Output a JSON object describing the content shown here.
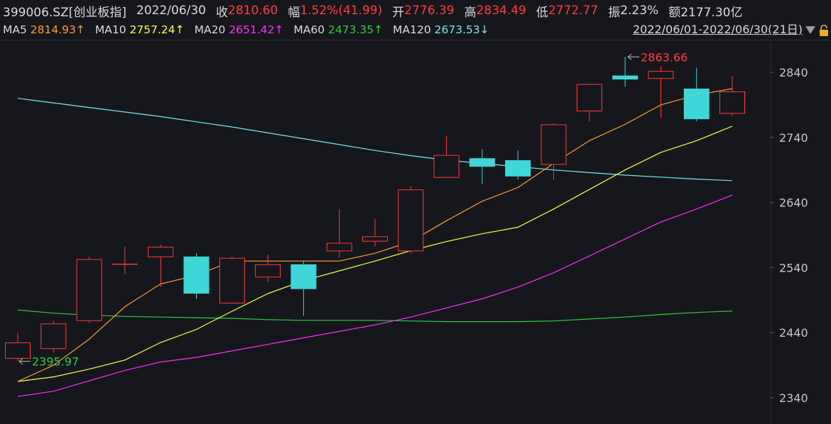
{
  "header": {
    "code": "399006.SZ[创业板指]",
    "date": "2022/06/30",
    "close_label": "收",
    "close_value": "2810.60",
    "change_label": "幅",
    "change_value": "1.52%(41.99)",
    "open_label": "开",
    "open_value": "2776.39",
    "high_label": "高",
    "high_value": "2834.49",
    "low_label": "低",
    "low_value": "2772.77",
    "amplitude_label": "振",
    "amplitude_value": "2.23%",
    "amount_label": "额",
    "amount_value": "2177.30亿"
  },
  "ma_bar": {
    "items": [
      {
        "label": "MA5",
        "value": "2814.93",
        "arrow": "↑",
        "color": "#ff9f2e"
      },
      {
        "label": "MA10",
        "value": "2757.24",
        "arrow": "↑",
        "color": "#ffff3b"
      },
      {
        "label": "MA20",
        "value": "2651.42",
        "arrow": "↑",
        "color": "#ff30ff"
      },
      {
        "label": "MA60",
        "value": "2473.35",
        "arrow": "↑",
        "color": "#2ecc40"
      },
      {
        "label": "MA120",
        "value": "2673.53",
        "arrow": "↓",
        "color": "#7ae8f0"
      }
    ],
    "range": "2022/06/01-2022/06/30(21日)"
  },
  "colors": {
    "up": "#ff3b3b",
    "down": "#3fd6d8",
    "background": "#16171c",
    "grid": "#2a2b31"
  },
  "chart_data": {
    "type": "candlestick",
    "ylim": [
      2320,
      2885
    ],
    "y_ticks": [
      2340,
      2440,
      2540,
      2640,
      2740,
      2840
    ],
    "candles": [
      {
        "o": 2400,
        "c": 2425,
        "h": 2440,
        "l": 2396
      },
      {
        "o": 2415,
        "c": 2454,
        "h": 2458,
        "l": 2410
      },
      {
        "o": 2458,
        "c": 2553,
        "h": 2557,
        "l": 2455
      },
      {
        "o": 2546,
        "c": 2546,
        "h": 2572,
        "l": 2530
      },
      {
        "o": 2556,
        "c": 2572,
        "h": 2575,
        "l": 2510
      },
      {
        "o": 2557,
        "c": 2500,
        "h": 2562,
        "l": 2492
      },
      {
        "o": 2485,
        "c": 2555,
        "h": 2557,
        "l": 2484
      },
      {
        "o": 2525,
        "c": 2545,
        "h": 2560,
        "l": 2518
      },
      {
        "o": 2545,
        "c": 2507,
        "h": 2550,
        "l": 2466
      },
      {
        "o": 2565,
        "c": 2578,
        "h": 2630,
        "l": 2555
      },
      {
        "o": 2580,
        "c": 2588,
        "h": 2615,
        "l": 2572
      },
      {
        "o": 2565,
        "c": 2660,
        "h": 2665,
        "l": 2562
      },
      {
        "o": 2678,
        "c": 2713,
        "h": 2742,
        "l": 2678
      },
      {
        "o": 2708,
        "c": 2695,
        "h": 2722,
        "l": 2668
      },
      {
        "o": 2705,
        "c": 2680,
        "h": 2720,
        "l": 2675
      },
      {
        "o": 2698,
        "c": 2760,
        "h": 2762,
        "l": 2675
      },
      {
        "o": 2780,
        "c": 2822,
        "h": 2822,
        "l": 2765
      },
      {
        "o": 2835,
        "c": 2829,
        "h": 2864,
        "l": 2818
      },
      {
        "o": 2830,
        "c": 2842,
        "h": 2850,
        "l": 2770
      },
      {
        "o": 2815,
        "c": 2768,
        "h": 2847,
        "l": 2765
      },
      {
        "o": 2776.39,
        "c": 2810.6,
        "h": 2834.49,
        "l": 2772.77
      }
    ],
    "ma5": [
      2365,
      2390,
      2430,
      2480,
      2515,
      2528,
      2550,
      2550,
      2550,
      2550,
      2562,
      2580,
      2612,
      2642,
      2663,
      2700,
      2735,
      2760,
      2790,
      2805,
      2814.93
    ],
    "ma10": [
      2365,
      2372,
      2384,
      2398,
      2425,
      2445,
      2473,
      2500,
      2520,
      2535,
      2550,
      2566,
      2580,
      2592,
      2602,
      2630,
      2660,
      2690,
      2717,
      2735,
      2757.24
    ],
    "ma20": [
      2342,
      2350,
      2366,
      2382,
      2395,
      2402,
      2412,
      2422,
      2432,
      2442,
      2452,
      2464,
      2478,
      2492,
      2510,
      2532,
      2558,
      2584,
      2610,
      2630,
      2651.42
    ],
    "ma60": [
      2475,
      2470,
      2467,
      2465,
      2464,
      2463,
      2462,
      2460,
      2459,
      2459,
      2459,
      2458,
      2457,
      2457,
      2457,
      2458,
      2461,
      2464,
      2468,
      2471,
      2473.35
    ],
    "ma120": [
      2800,
      2793,
      2786,
      2779,
      2772,
      2764,
      2756,
      2747,
      2738,
      2729,
      2720,
      2712,
      2705,
      2700,
      2695,
      2690,
      2686,
      2682,
      2679,
      2676,
      2673.53
    ],
    "annotations": {
      "high": {
        "value": "2863.66",
        "index": 17
      },
      "low": {
        "value": "2395.97",
        "index": 0
      }
    }
  }
}
